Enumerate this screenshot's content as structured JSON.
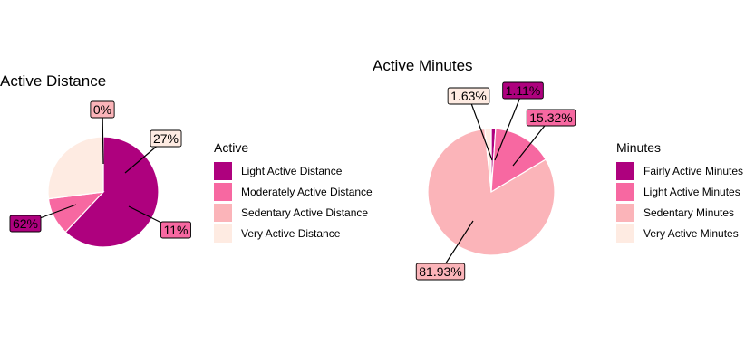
{
  "colors": {
    "fairly_or_light_active": "#AE017E",
    "moderate_or_light_minutes": "#F768A1",
    "sedentary": "#FBB4B9",
    "very_active": "#FEEBE2"
  },
  "chart_data": [
    {
      "type": "pie",
      "title": "Active Distance",
      "legend_title": "Active",
      "legend_placement": "right",
      "slices": [
        {
          "category": "Light Active Distance",
          "value": 62,
          "label": "62%",
          "color": "#AE017E"
        },
        {
          "category": "Moderately Active Distance",
          "value": 11,
          "label": "11%",
          "color": "#F768A1"
        },
        {
          "category": "Sedentary Active Distance",
          "value": 0,
          "label": "0%",
          "color": "#FBB4B9"
        },
        {
          "category": "Very Active Distance",
          "value": 27,
          "label": "27%",
          "color": "#FEEBE2"
        }
      ]
    },
    {
      "type": "pie",
      "title": "Active Minutes",
      "legend_title": "Minutes",
      "legend_placement": "right",
      "slices": [
        {
          "category": "Fairly Active Minutes",
          "value": 1.11,
          "label": "1.11%",
          "color": "#AE017E"
        },
        {
          "category": "Light Active Minutes",
          "value": 15.32,
          "label": "15.32%",
          "color": "#F768A1"
        },
        {
          "category": "Sedentary Minutes",
          "value": 81.93,
          "label": "81.93%",
          "color": "#FBB4B9"
        },
        {
          "category": "Very Active Minutes",
          "value": 1.63,
          "label": "1.63%",
          "color": "#FEEBE2"
        }
      ]
    }
  ]
}
